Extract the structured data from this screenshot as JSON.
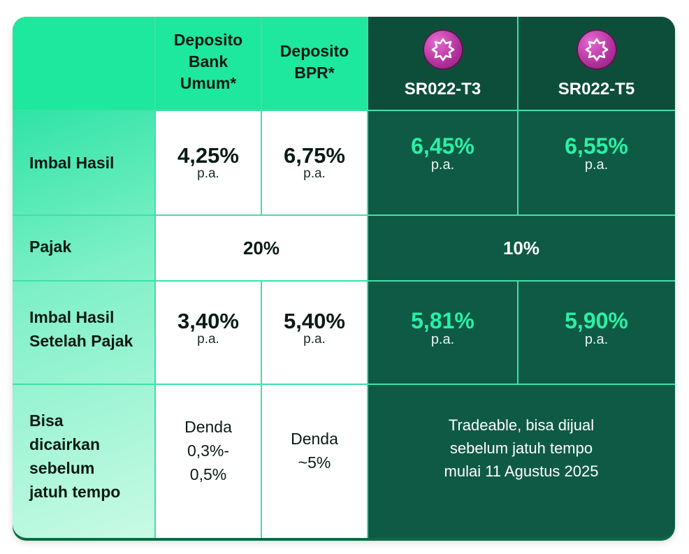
{
  "header": {
    "col1": [
      "Deposito",
      "Bank",
      "Umum*"
    ],
    "col2": [
      "Deposito",
      "BPR*"
    ],
    "col3": "SR022-T3",
    "col4": "SR022-T5",
    "badge_icon": "star-badge-icon",
    "badge_color": "#b02e99"
  },
  "rows": {
    "imbal_hasil": {
      "label": "Imbal Hasil",
      "bank": "4,25%",
      "bpr": "6,75%",
      "t3": "6,45%",
      "t5": "6,55%",
      "unit": "p.a."
    },
    "pajak": {
      "label": "Pajak",
      "deposito": "20%",
      "sr": "10%"
    },
    "setelah_pajak": {
      "label": [
        "Imbal Hasil",
        "Setelah Pajak"
      ],
      "bank": "3,40%",
      "bpr": "5,40%",
      "t3": "5,81%",
      "t5": "5,90%",
      "unit": "p.a."
    },
    "cair": {
      "label": [
        "Bisa",
        "dicairkan",
        "sebelum",
        "jatuh tempo"
      ],
      "bank": [
        "Denda",
        "0,3%-",
        "0,5%"
      ],
      "bpr": [
        "Denda",
        "~5%"
      ],
      "sr": [
        "Tradeable, bisa dijual",
        "sebelum jatuh tempo",
        "mulai 11 Agustus 2025"
      ]
    }
  },
  "colors": {
    "accent_green": "#2af0a6",
    "header_light": "#1ee89e",
    "dark_green": "#0f5a44"
  }
}
